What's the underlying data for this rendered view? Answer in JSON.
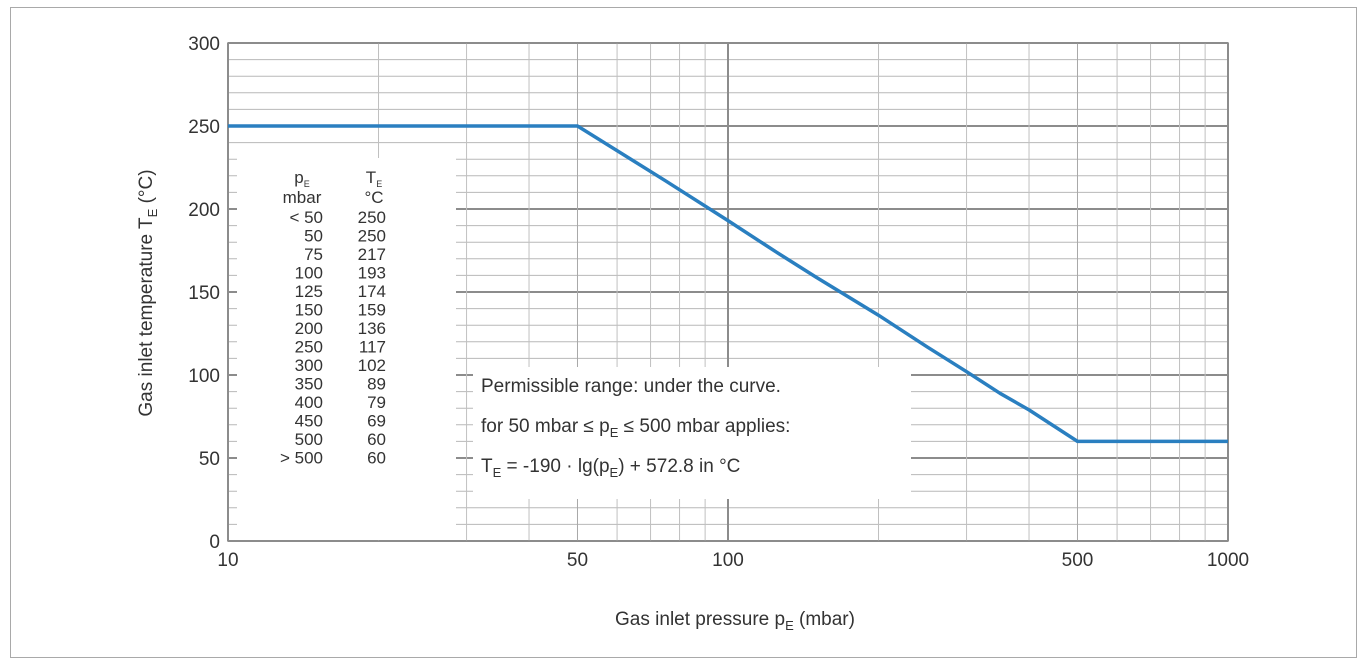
{
  "chart_data": {
    "type": "line",
    "x_scale": "log",
    "xlim": [
      10,
      1000
    ],
    "ylim": [
      0,
      300
    ],
    "x_ticks": [
      "10",
      "50",
      "100",
      "500",
      "1000"
    ],
    "y_ticks": [
      "0",
      "50",
      "100",
      "150",
      "200",
      "250",
      "300"
    ],
    "xlabel": {
      "main": "Gas inlet pressure p",
      "sub": "E",
      "unit": " (mbar)"
    },
    "ylabel": {
      "main": "Gas inlet temperature T",
      "sub": "E",
      "unit": " (°C)"
    },
    "grid": true,
    "series": [
      {
        "color": "#2a7fc0",
        "x": [
          10,
          50,
          75,
          100,
          125,
          150,
          200,
          250,
          300,
          350,
          400,
          450,
          500,
          1000
        ],
        "y": [
          250,
          250,
          217,
          193,
          174,
          159,
          136,
          117,
          102,
          89,
          79,
          69,
          60,
          60
        ]
      }
    ],
    "table": {
      "header1": {
        "main": "p",
        "sub": "E"
      },
      "header2": {
        "main": "T",
        "sub": "E"
      },
      "unit1": "mbar",
      "unit2": "°C",
      "rows": [
        [
          "<  50",
          "250"
        ],
        [
          "50",
          "250"
        ],
        [
          "75",
          "217"
        ],
        [
          "100",
          "193"
        ],
        [
          "125",
          "174"
        ],
        [
          "150",
          "159"
        ],
        [
          "200",
          "136"
        ],
        [
          "250",
          "117"
        ],
        [
          "300",
          "102"
        ],
        [
          "350",
          "89"
        ],
        [
          "400",
          "79"
        ],
        [
          "450",
          "69"
        ],
        [
          "500",
          "60"
        ],
        [
          "> 500",
          "60"
        ]
      ]
    },
    "annotation": {
      "line1": "Permissible range: under the curve.",
      "line2": {
        "a": "for 50 mbar ≤ p",
        "sub": "E",
        "b": " ≤ 500 mbar applies:"
      },
      "line3": {
        "a": "T",
        "sub": "E",
        "b": " = -190 · lg(p",
        "sub2": "E",
        "c": ") + 572.8 in °C"
      }
    }
  }
}
